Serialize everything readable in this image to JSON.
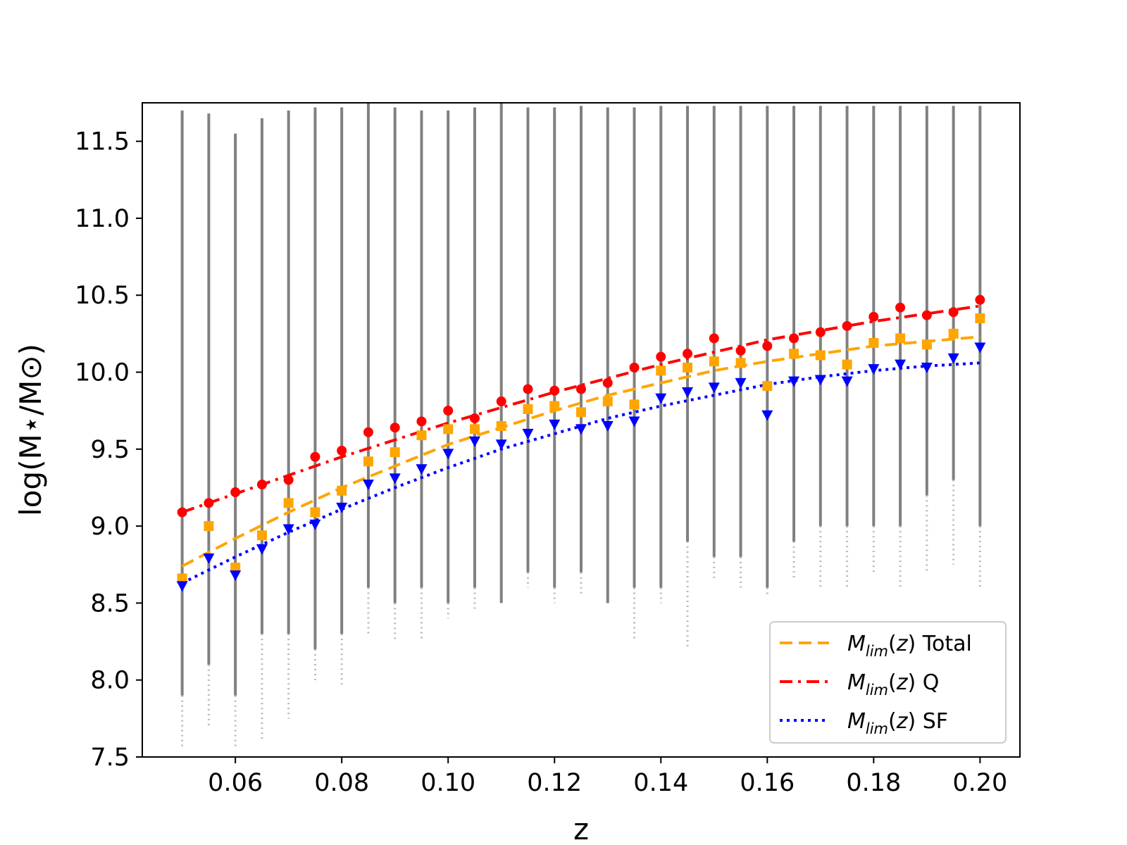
{
  "chart_data": {
    "type": "scatter",
    "xlabel": "z",
    "ylabel": "log(M⋆/M⊙)",
    "xlim": [
      0.0425,
      0.2075
    ],
    "ylim": [
      7.5,
      11.75
    ],
    "x_ticks": [
      "0.06",
      "0.08",
      "0.10",
      "0.12",
      "0.14",
      "0.16",
      "0.18",
      "0.20"
    ],
    "x_tick_values": [
      0.06,
      0.08,
      0.1,
      0.12,
      0.14,
      0.16,
      0.18,
      0.2
    ],
    "y_ticks": [
      "7.5",
      "8.0",
      "8.5",
      "9.0",
      "9.5",
      "10.0",
      "10.5",
      "11.0",
      "11.5"
    ],
    "y_tick_values": [
      7.5,
      8.0,
      8.5,
      9.0,
      9.5,
      10.0,
      10.5,
      11.0,
      11.5
    ],
    "grid": false,
    "legend_position": "bottom-right",
    "background_sample": {
      "color": "#808080",
      "z": [
        0.05,
        0.055,
        0.06,
        0.065,
        0.07,
        0.075,
        0.08,
        0.085,
        0.09,
        0.095,
        0.1,
        0.105,
        0.11,
        0.115,
        0.12,
        0.125,
        0.13,
        0.135,
        0.14,
        0.145,
        0.15,
        0.155,
        0.16,
        0.165,
        0.17,
        0.175,
        0.18,
        0.185,
        0.19,
        0.195,
        0.2
      ],
      "dense_min": [
        7.9,
        8.1,
        7.9,
        8.3,
        8.3,
        8.2,
        8.3,
        8.6,
        8.5,
        8.6,
        8.5,
        8.6,
        8.5,
        8.7,
        8.6,
        8.7,
        8.5,
        8.6,
        8.6,
        8.9,
        8.8,
        8.8,
        8.6,
        8.9,
        9.0,
        9.0,
        9.0,
        9.0,
        9.2,
        9.3,
        9.0
      ],
      "sparse_min": [
        7.55,
        7.7,
        7.55,
        7.6,
        7.75,
        8.0,
        7.95,
        8.3,
        8.25,
        8.25,
        8.4,
        8.45,
        8.5,
        8.6,
        8.5,
        8.55,
        8.55,
        8.25,
        8.5,
        8.2,
        8.65,
        8.6,
        8.55,
        8.65,
        8.6,
        8.6,
        8.7,
        8.6,
        8.7,
        8.75,
        8.6
      ],
      "max": [
        11.7,
        11.68,
        11.55,
        11.65,
        11.7,
        11.72,
        11.72,
        11.75,
        11.72,
        11.7,
        11.7,
        11.72,
        11.75,
        11.72,
        11.72,
        11.73,
        11.72,
        11.72,
        11.73,
        11.73,
        11.73,
        11.73,
        11.73,
        11.73,
        11.73,
        11.73,
        11.73,
        11.73,
        11.73,
        11.73,
        11.73
      ]
    },
    "series": [
      {
        "name": "Total",
        "marker": "square",
        "color": "#FFA500",
        "line_style": "dashed",
        "x": [
          0.05,
          0.055,
          0.06,
          0.065,
          0.07,
          0.075,
          0.08,
          0.085,
          0.09,
          0.095,
          0.1,
          0.105,
          0.11,
          0.115,
          0.12,
          0.125,
          0.13,
          0.135,
          0.14,
          0.145,
          0.15,
          0.155,
          0.16,
          0.165,
          0.17,
          0.175,
          0.18,
          0.185,
          0.19,
          0.195,
          0.2
        ],
        "y": [
          8.66,
          9.0,
          8.73,
          8.94,
          9.15,
          9.09,
          9.23,
          9.42,
          9.48,
          9.59,
          9.63,
          9.63,
          9.65,
          9.76,
          9.78,
          9.74,
          9.81,
          9.79,
          10.01,
          10.03,
          10.07,
          10.06,
          9.91,
          10.12,
          10.11,
          10.05,
          10.19,
          10.22,
          10.18,
          10.25,
          10.35
        ],
        "fit_x": [
          0.05,
          0.06,
          0.07,
          0.08,
          0.09,
          0.1,
          0.11,
          0.12,
          0.13,
          0.14,
          0.15,
          0.16,
          0.17,
          0.18,
          0.19,
          0.2
        ],
        "fit_y": [
          8.74,
          8.92,
          9.09,
          9.25,
          9.39,
          9.53,
          9.64,
          9.75,
          9.85,
          9.93,
          10.01,
          10.07,
          10.12,
          10.17,
          10.2,
          10.23
        ]
      },
      {
        "name": "Q",
        "marker": "circle",
        "color": "#FF0000",
        "line_style": "dash-dot",
        "x": [
          0.05,
          0.055,
          0.06,
          0.065,
          0.07,
          0.075,
          0.08,
          0.085,
          0.09,
          0.095,
          0.1,
          0.105,
          0.11,
          0.115,
          0.12,
          0.125,
          0.13,
          0.135,
          0.14,
          0.145,
          0.15,
          0.155,
          0.16,
          0.165,
          0.17,
          0.175,
          0.18,
          0.185,
          0.19,
          0.195,
          0.2
        ],
        "y": [
          9.09,
          9.15,
          9.22,
          9.27,
          9.3,
          9.45,
          9.49,
          9.61,
          9.64,
          9.68,
          9.75,
          9.7,
          9.81,
          9.89,
          9.88,
          9.89,
          9.93,
          10.03,
          10.1,
          10.12,
          10.22,
          10.14,
          10.17,
          10.22,
          10.26,
          10.3,
          10.36,
          10.42,
          10.37,
          10.39,
          10.47
        ],
        "fit_x": [
          0.05,
          0.06,
          0.07,
          0.08,
          0.09,
          0.1,
          0.11,
          0.12,
          0.13,
          0.14,
          0.15,
          0.16,
          0.17,
          0.18,
          0.19,
          0.2
        ],
        "fit_y": [
          9.09,
          9.21,
          9.33,
          9.45,
          9.56,
          9.67,
          9.77,
          9.87,
          9.96,
          10.05,
          10.13,
          10.21,
          10.27,
          10.33,
          10.38,
          10.43
        ]
      },
      {
        "name": "SF",
        "marker": "triangle-down",
        "color": "#0000FF",
        "line_style": "dotted",
        "x": [
          0.05,
          0.055,
          0.06,
          0.065,
          0.07,
          0.075,
          0.08,
          0.085,
          0.09,
          0.095,
          0.1,
          0.105,
          0.11,
          0.115,
          0.12,
          0.125,
          0.13,
          0.135,
          0.14,
          0.145,
          0.15,
          0.155,
          0.16,
          0.165,
          0.17,
          0.175,
          0.18,
          0.185,
          0.19,
          0.195,
          0.2
        ],
        "y": [
          8.61,
          8.79,
          8.68,
          8.85,
          8.98,
          9.01,
          9.12,
          9.27,
          9.31,
          9.37,
          9.47,
          9.55,
          9.53,
          9.6,
          9.66,
          9.63,
          9.65,
          9.68,
          9.83,
          9.87,
          9.9,
          9.93,
          9.72,
          9.94,
          9.95,
          9.94,
          10.02,
          10.05,
          10.03,
          10.09,
          10.16
        ],
        "fit_x": [
          0.05,
          0.06,
          0.07,
          0.08,
          0.09,
          0.1,
          0.11,
          0.12,
          0.13,
          0.14,
          0.15,
          0.16,
          0.17,
          0.18,
          0.19,
          0.2
        ],
        "fit_y": [
          8.63,
          8.8,
          8.96,
          9.11,
          9.25,
          9.38,
          9.5,
          9.6,
          9.7,
          9.78,
          9.85,
          9.92,
          9.97,
          10.01,
          10.04,
          10.06
        ]
      }
    ]
  }
}
